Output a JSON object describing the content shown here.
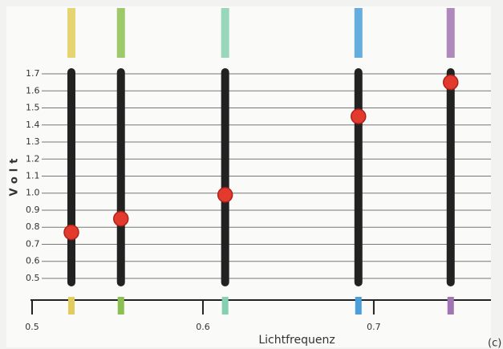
{
  "chart_data": {
    "type": "scatter",
    "y_label": "Volt",
    "x_label": "Lichtfrequenz",
    "corner_note": "(c)",
    "x": [
      0.523,
      0.552,
      0.613,
      0.691,
      0.745
    ],
    "values": [
      0.77,
      0.85,
      0.99,
      1.45,
      1.65
    ],
    "strip_colors": [
      "#e2cc5c",
      "#8cbf52",
      "#86d0b2",
      "#4a9fd8",
      "#a274b2"
    ],
    "point_color": "#e23a2c",
    "xlim": [
      0.5,
      0.77
    ],
    "xticks": [
      0.5,
      0.6,
      0.7
    ],
    "ylim": [
      0.45,
      1.75
    ],
    "yticks": [
      0.5,
      0.6,
      0.7,
      0.8,
      0.9,
      {
        "value": 1,
        "label": "1.0"
      },
      1.1,
      1.2,
      1.3,
      1.4,
      1.5,
      1.6,
      1.7
    ],
    "grid": true
  }
}
